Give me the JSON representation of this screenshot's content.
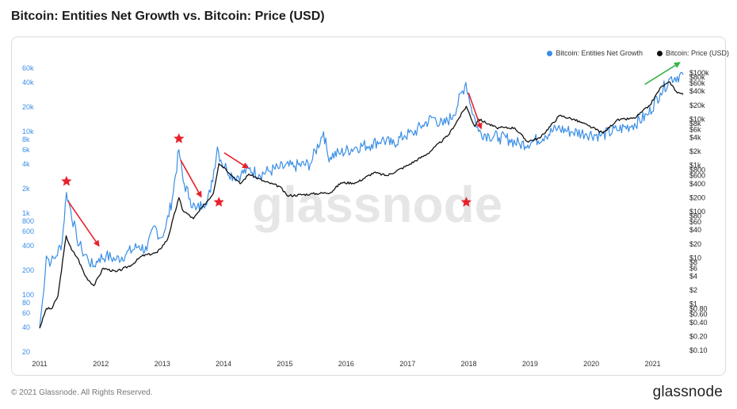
{
  "header": {
    "title": "Bitcoin: Entities Net Growth vs. Bitcoin: Price (USD)"
  },
  "footer": {
    "copyright": "© 2021 Glassnode. All Rights Reserved.",
    "brand": "glassnode"
  },
  "watermark": "glassnode",
  "colors": {
    "growth": "#3a8ee6",
    "price": "#111111",
    "left_axis": "#3a8ee6",
    "star": "#e8222c",
    "arrow_down": "#e8222c",
    "arrow_up": "#35b44a"
  },
  "chart_data": {
    "type": "line",
    "title": "Bitcoin: Entities Net Growth vs. Bitcoin: Price (USD)",
    "x_range": [
      "2011-01-01",
      "2021-07-01"
    ],
    "x_ticks": [
      "2011",
      "2012",
      "2013",
      "2014",
      "2015",
      "2016",
      "2017",
      "2018",
      "2019",
      "2020",
      "2021"
    ],
    "y_left": {
      "scale": "log",
      "range": [
        20,
        60000
      ],
      "ticks": [
        "20",
        "40",
        "60",
        "80",
        "100",
        "200",
        "400",
        "600",
        "800",
        "1k",
        "2k",
        "4k",
        "6k",
        "8k",
        "10k",
        "20k",
        "40k",
        "60k"
      ],
      "tick_values": [
        20,
        40,
        60,
        80,
        100,
        200,
        400,
        600,
        800,
        1000,
        2000,
        4000,
        6000,
        8000,
        10000,
        20000,
        40000,
        60000
      ]
    },
    "y_right": {
      "scale": "log",
      "range": [
        0.1,
        100000
      ],
      "ticks": [
        "$0.10",
        "$0.20",
        "$0.40",
        "$0.60",
        "$0.80",
        "$1",
        "$2",
        "$4",
        "$6",
        "$8",
        "$10",
        "$20",
        "$40",
        "$60",
        "$80",
        "$100",
        "$200",
        "$400",
        "$600",
        "$800",
        "$1k",
        "$2k",
        "$4k",
        "$6k",
        "$8k",
        "$10k",
        "$20k",
        "$40k",
        "$60k",
        "$80k",
        "$100k"
      ],
      "tick_values": [
        0.1,
        0.2,
        0.4,
        0.6,
        0.8,
        1,
        2,
        4,
        6,
        8,
        10,
        20,
        40,
        60,
        80,
        100,
        200,
        400,
        600,
        800,
        1000,
        2000,
        4000,
        6000,
        8000,
        10000,
        20000,
        40000,
        60000,
        80000,
        100000
      ]
    },
    "grid": false,
    "legend_position": "top-right",
    "series": [
      {
        "name": "Bitcoin: Entities Net Growth",
        "axis": "left",
        "points": [
          [
            "2011-01-01",
            40
          ],
          [
            "2011-01-20",
            90
          ],
          [
            "2011-02-10",
            300
          ],
          [
            "2011-03-10",
            250
          ],
          [
            "2011-04-10",
            300
          ],
          [
            "2011-05-15",
            450
          ],
          [
            "2011-06-10",
            1800
          ],
          [
            "2011-07-05",
            1100
          ],
          [
            "2011-08-10",
            500
          ],
          [
            "2011-09-10",
            350
          ],
          [
            "2011-10-15",
            280
          ],
          [
            "2011-11-15",
            220
          ],
          [
            "2011-12-20",
            280
          ],
          [
            "2012-02-01",
            300
          ],
          [
            "2012-04-01",
            270
          ],
          [
            "2012-06-01",
            320
          ],
          [
            "2012-08-15",
            400
          ],
          [
            "2012-10-01",
            350
          ],
          [
            "2012-11-15",
            700
          ],
          [
            "2012-12-20",
            500
          ],
          [
            "2013-01-20",
            650
          ],
          [
            "2013-03-01",
            1500
          ],
          [
            "2013-04-10",
            6000
          ],
          [
            "2013-05-05",
            2500
          ],
          [
            "2013-06-15",
            1500
          ],
          [
            "2013-07-20",
            1100
          ],
          [
            "2013-09-01",
            1300
          ],
          [
            "2013-10-15",
            1800
          ],
          [
            "2013-11-25",
            6500
          ],
          [
            "2013-12-15",
            4500
          ],
          [
            "2014-01-20",
            3500
          ],
          [
            "2014-03-01",
            2800
          ],
          [
            "2014-04-15",
            3000
          ],
          [
            "2014-06-01",
            3500
          ],
          [
            "2014-08-01",
            3000
          ],
          [
            "2014-10-01",
            3300
          ],
          [
            "2014-12-01",
            3600
          ],
          [
            "2015-03-01",
            3800
          ],
          [
            "2015-06-01",
            4000
          ],
          [
            "2015-08-20",
            10000
          ],
          [
            "2015-09-15",
            5000
          ],
          [
            "2015-12-01",
            5500
          ],
          [
            "2016-03-01",
            6500
          ],
          [
            "2016-06-01",
            7000
          ],
          [
            "2016-08-01",
            8000
          ],
          [
            "2016-10-01",
            7000
          ],
          [
            "2016-12-15",
            9000
          ],
          [
            "2017-02-01",
            9500
          ],
          [
            "2017-04-01",
            12000
          ],
          [
            "2017-06-01",
            15000
          ],
          [
            "2017-08-01",
            12000
          ],
          [
            "2017-10-01",
            16000
          ],
          [
            "2017-12-15",
            40000
          ],
          [
            "2018-01-15",
            20000
          ],
          [
            "2018-03-01",
            10000
          ],
          [
            "2018-05-01",
            9000
          ],
          [
            "2018-07-01",
            8500
          ],
          [
            "2018-09-01",
            8000
          ],
          [
            "2018-11-01",
            7000
          ],
          [
            "2019-01-15",
            7500
          ],
          [
            "2019-04-01",
            9000
          ],
          [
            "2019-06-15",
            11000
          ],
          [
            "2019-09-01",
            10000
          ],
          [
            "2019-12-01",
            9500
          ],
          [
            "2020-03-01",
            9000
          ],
          [
            "2020-06-01",
            10500
          ],
          [
            "2020-09-01",
            12000
          ],
          [
            "2020-12-01",
            16000
          ],
          [
            "2021-02-15",
            30000
          ],
          [
            "2021-04-15",
            45000
          ],
          [
            "2021-07-01",
            50000
          ]
        ]
      },
      {
        "name": "Bitcoin: Price (USD)",
        "axis": "right",
        "points": [
          [
            "2011-01-01",
            0.3
          ],
          [
            "2011-02-10",
            0.8
          ],
          [
            "2011-03-15",
            0.8
          ],
          [
            "2011-04-20",
            1.5
          ],
          [
            "2011-06-08",
            30
          ],
          [
            "2011-07-10",
            15
          ],
          [
            "2011-08-15",
            10
          ],
          [
            "2011-10-01",
            4
          ],
          [
            "2011-11-20",
            2.5
          ],
          [
            "2012-01-15",
            6
          ],
          [
            "2012-04-01",
            5
          ],
          [
            "2012-07-01",
            7
          ],
          [
            "2012-09-01",
            11
          ],
          [
            "2012-12-01",
            13
          ],
          [
            "2013-02-01",
            25
          ],
          [
            "2013-04-10",
            200
          ],
          [
            "2013-05-01",
            110
          ],
          [
            "2013-07-05",
            70
          ],
          [
            "2013-09-01",
            130
          ],
          [
            "2013-11-01",
            250
          ],
          [
            "2013-12-04",
            1100
          ],
          [
            "2014-01-05",
            900
          ],
          [
            "2014-04-10",
            400
          ],
          [
            "2014-06-01",
            650
          ],
          [
            "2014-09-01",
            450
          ],
          [
            "2014-12-01",
            350
          ],
          [
            "2015-01-15",
            220
          ],
          [
            "2015-06-01",
            240
          ],
          [
            "2015-10-01",
            260
          ],
          [
            "2015-12-01",
            420
          ],
          [
            "2016-03-01",
            420
          ],
          [
            "2016-06-15",
            700
          ],
          [
            "2016-09-01",
            600
          ],
          [
            "2017-01-01",
            1000
          ],
          [
            "2017-05-01",
            1800
          ],
          [
            "2017-09-01",
            4500
          ],
          [
            "2017-12-17",
            19000
          ],
          [
            "2018-02-05",
            7000
          ],
          [
            "2018-03-01",
            10000
          ],
          [
            "2018-06-15",
            6500
          ],
          [
            "2018-10-01",
            6500
          ],
          [
            "2018-12-15",
            3300
          ],
          [
            "2019-03-01",
            3900
          ],
          [
            "2019-06-26",
            12000
          ],
          [
            "2019-09-15",
            10000
          ],
          [
            "2019-12-15",
            7200
          ],
          [
            "2020-03-12",
            5000
          ],
          [
            "2020-06-01",
            9500
          ],
          [
            "2020-09-15",
            10500
          ],
          [
            "2020-12-15",
            20000
          ],
          [
            "2021-02-20",
            50000
          ],
          [
            "2021-04-14",
            63000
          ],
          [
            "2021-05-20",
            40000
          ],
          [
            "2021-07-01",
            34000
          ]
        ]
      }
    ],
    "annotations": {
      "star_dates": [
        "2011-06-10",
        "2013-04-10",
        "2013-12-04",
        "2017-12-17"
      ],
      "down_arrows": [
        {
          "from": [
            "2011-06-20",
            1400
          ],
          "to": [
            "2011-12-20",
            400
          ]
        },
        {
          "from": [
            "2013-04-20",
            4500
          ],
          "to": [
            "2013-08-20",
            1600
          ]
        },
        {
          "from": [
            "2014-01-05",
            5500
          ],
          "to": [
            "2014-05-25",
            3600
          ]
        },
        {
          "from": [
            "2017-12-30",
            30000
          ],
          "to": [
            "2018-03-15",
            11000
          ]
        }
      ],
      "up_arrows": [
        {
          "from": [
            "2020-11-15",
            38000
          ],
          "to": [
            "2021-06-10",
            70000
          ]
        }
      ]
    }
  }
}
